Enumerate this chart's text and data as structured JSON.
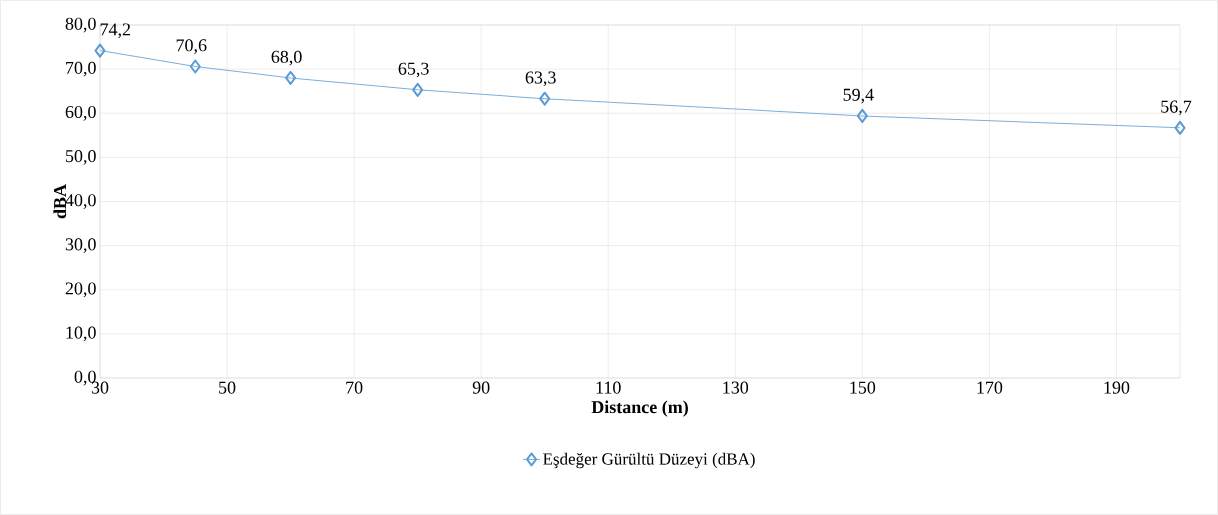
{
  "chart_data": {
    "type": "line",
    "xlabel": "Distance (m)",
    "ylabel": "dBA",
    "x": [
      30,
      45,
      60,
      80,
      100,
      150,
      200
    ],
    "series": [
      {
        "name": "Eşdeğer Gürültü Düzeyi (dBA)",
        "color": "#5b9bd5",
        "values": [
          74.2,
          70.6,
          68.0,
          65.3,
          63.3,
          59.4,
          56.7
        ],
        "value_labels": [
          "74,2",
          "70,6",
          "68,0",
          "65,3",
          "63,3",
          "59,4",
          "56,7"
        ]
      }
    ],
    "xlim": [
      30,
      200
    ],
    "xticks": [
      30,
      50,
      70,
      90,
      110,
      130,
      150,
      170,
      190
    ],
    "ylim": [
      0,
      80
    ],
    "yticks": [
      {
        "value": 0,
        "label": "0,0"
      },
      {
        "value": 10,
        "label": "10,0"
      },
      {
        "value": 20,
        "label": "20,0"
      },
      {
        "value": 30,
        "label": "30,0"
      },
      {
        "value": 40,
        "label": "40,0"
      },
      {
        "value": 50,
        "label": "50,0"
      },
      {
        "value": 60,
        "label": "60,0"
      },
      {
        "value": 70,
        "label": "70,0"
      },
      {
        "value": 80,
        "label": "80,0"
      }
    ],
    "grid": true,
    "legend": "bottom",
    "marker": "diamond",
    "line_style": "solid"
  }
}
